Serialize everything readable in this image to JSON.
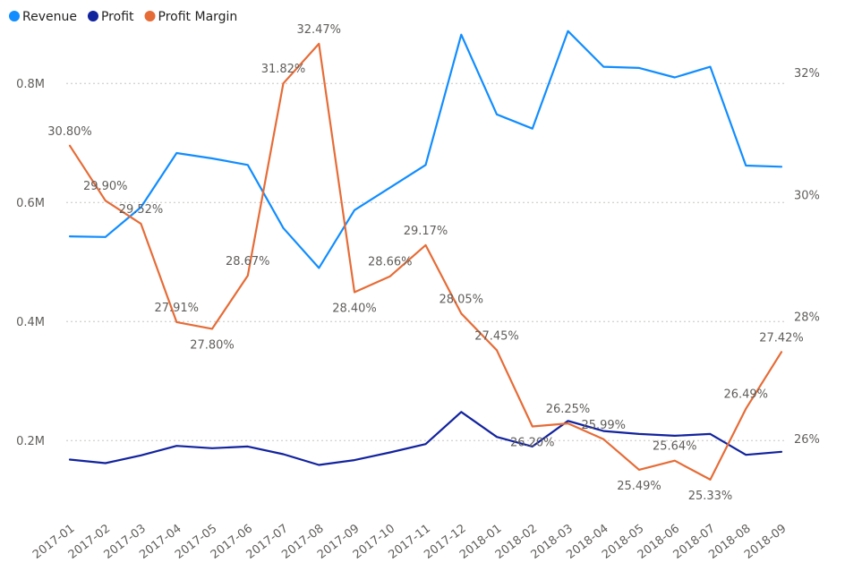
{
  "chart_data": {
    "type": "line",
    "title": "",
    "legend_position": "top-left",
    "grid": true,
    "x": [
      "2017-01",
      "2017-02",
      "2017-03",
      "2017-04",
      "2017-05",
      "2017-06",
      "2017-07",
      "2017-08",
      "2017-09",
      "2017-10",
      "2017-11",
      "2017-12",
      "2018-01",
      "2018-02",
      "2018-03",
      "2018-04",
      "2018-05",
      "2018-06",
      "2018-07",
      "2018-08",
      "2018-09"
    ],
    "y_left": {
      "range": [
        0.08,
        0.88
      ],
      "ticks": [
        0.2,
        0.4,
        0.6,
        0.8
      ],
      "tick_labels": [
        "0.2M",
        "0.4M",
        "0.6M",
        "0.8M"
      ]
    },
    "y_right": {
      "range": [
        24.8,
        32.6
      ],
      "ticks": [
        26,
        28,
        30,
        32
      ],
      "tick_labels": [
        "26%",
        "28%",
        "30%",
        "32%"
      ]
    },
    "series": [
      {
        "name": "Revenue",
        "axis": "left",
        "color": "#118dff",
        "values": [
          0.543,
          0.542,
          0.592,
          0.683,
          0.674,
          0.663,
          0.557,
          0.49,
          0.587,
          0.625,
          0.663,
          0.882,
          0.748,
          0.724,
          0.888,
          0.828,
          0.826,
          0.81,
          0.828,
          0.662,
          0.66
        ]
      },
      {
        "name": "Profit",
        "axis": "left",
        "color": "#12239e",
        "values": [
          0.168,
          0.162,
          0.175,
          0.191,
          0.187,
          0.19,
          0.177,
          0.159,
          0.167,
          0.18,
          0.194,
          0.248,
          0.206,
          0.19,
          0.233,
          0.216,
          0.211,
          0.208,
          0.211,
          0.176,
          0.181
        ]
      },
      {
        "name": "Profit Margin",
        "axis": "right",
        "color": "#e66c37",
        "values": [
          30.8,
          29.9,
          29.52,
          27.91,
          27.8,
          28.67,
          31.82,
          32.47,
          28.4,
          28.66,
          29.17,
          28.05,
          27.45,
          26.2,
          26.25,
          25.99,
          25.49,
          25.64,
          25.33,
          26.49,
          27.42
        ],
        "data_labels": [
          "30.80%",
          "29.90%",
          "29.52%",
          "27.91%",
          "27.80%",
          "28.67%",
          "31.82%",
          "32.47%",
          "28.40%",
          "28.66%",
          "29.17%",
          "28.05%",
          "27.45%",
          "26.20%",
          "26.25%",
          "25.99%",
          "25.49%",
          "25.64%",
          "25.33%",
          "26.49%",
          "27.42%"
        ]
      }
    ]
  }
}
